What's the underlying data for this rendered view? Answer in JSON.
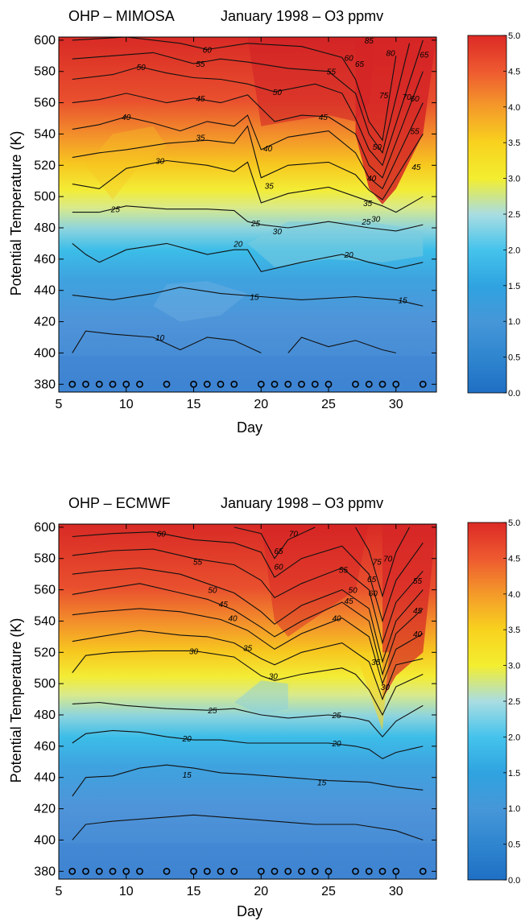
{
  "chart_data": [
    {
      "type": "heatmap",
      "title_left": "OHP – MIMOSA",
      "title_right": "January 1998  – O3 ppmv",
      "xlabel": "Day",
      "ylabel": "Potential Temperature (K)",
      "xlim": [
        5,
        33
      ],
      "ylim": [
        375,
        602
      ],
      "xticks": [
        5,
        10,
        15,
        20,
        25,
        30
      ],
      "yticks": [
        380,
        400,
        420,
        440,
        460,
        480,
        500,
        520,
        540,
        560,
        580,
        600
      ],
      "colorbar_ticks": [
        "0.0",
        "0.5",
        "1.0",
        "1.5",
        "2.0",
        "2.5",
        "3.0",
        "3.5",
        "4.0",
        "4.5",
        "5.0"
      ],
      "colorbar_range": [
        0,
        5
      ],
      "observation_days": [
        6,
        7,
        8,
        9,
        10,
        11,
        13,
        15,
        16,
        17,
        18,
        20,
        21,
        22,
        23,
        24,
        25,
        27,
        28,
        29,
        30,
        32
      ],
      "observation_level": 380,
      "contour_labels": [
        {
          "text": "10",
          "x": 12.5,
          "y": 410
        },
        {
          "text": "15",
          "x": 19.5,
          "y": 436
        },
        {
          "text": "15",
          "x": 30.5,
          "y": 434
        },
        {
          "text": "20",
          "x": 18.3,
          "y": 470
        },
        {
          "text": "20",
          "x": 26.5,
          "y": 463
        },
        {
          "text": "25",
          "x": 9.2,
          "y": 492
        },
        {
          "text": "25",
          "x": 19.6,
          "y": 483
        },
        {
          "text": "25",
          "x": 27.8,
          "y": 484
        },
        {
          "text": "30",
          "x": 12.5,
          "y": 523
        },
        {
          "text": "30",
          "x": 21.2,
          "y": 478
        },
        {
          "text": "30",
          "x": 28.5,
          "y": 486
        },
        {
          "text": "35",
          "x": 15.5,
          "y": 538
        },
        {
          "text": "35",
          "x": 20.6,
          "y": 507
        },
        {
          "text": "35",
          "x": 27.9,
          "y": 496
        },
        {
          "text": "40",
          "x": 10.0,
          "y": 551
        },
        {
          "text": "40",
          "x": 20.5,
          "y": 531
        },
        {
          "text": "40",
          "x": 28.2,
          "y": 512
        },
        {
          "text": "45",
          "x": 15.5,
          "y": 563
        },
        {
          "text": "45",
          "x": 24.6,
          "y": 551
        },
        {
          "text": "45",
          "x": 31.5,
          "y": 519
        },
        {
          "text": "50",
          "x": 11.1,
          "y": 583
        },
        {
          "text": "50",
          "x": 21.2,
          "y": 567
        },
        {
          "text": "50",
          "x": 28.6,
          "y": 532
        },
        {
          "text": "55",
          "x": 15.5,
          "y": 585
        },
        {
          "text": "55",
          "x": 25.2,
          "y": 580
        },
        {
          "text": "55",
          "x": 31.4,
          "y": 542
        },
        {
          "text": "60",
          "x": 16.0,
          "y": 594
        },
        {
          "text": "60",
          "x": 26.5,
          "y": 589
        },
        {
          "text": "60",
          "x": 31.4,
          "y": 563
        },
        {
          "text": "65",
          "x": 27.3,
          "y": 585
        },
        {
          "text": "65",
          "x": 32.1,
          "y": 591
        },
        {
          "text": "70",
          "x": 30.8,
          "y": 564
        },
        {
          "text": "75",
          "x": 29.1,
          "y": 565
        },
        {
          "text": "80",
          "x": 29.6,
          "y": 592
        },
        {
          "text": "85",
          "x": 28.0,
          "y": 600
        }
      ]
    },
    {
      "type": "heatmap",
      "title_left": "OHP – ECMWF",
      "title_right": "January 1998  – O3 ppmv",
      "xlabel": "Day",
      "ylabel": "Potential Temperature (K)",
      "xlim": [
        5,
        33
      ],
      "ylim": [
        375,
        602
      ],
      "xticks": [
        5,
        10,
        15,
        20,
        25,
        30
      ],
      "yticks": [
        380,
        400,
        420,
        440,
        460,
        480,
        500,
        520,
        540,
        560,
        580,
        600
      ],
      "colorbar_ticks": [
        "0.0",
        "0.5",
        "1.0",
        "1.5",
        "2.0",
        "2.5",
        "3.0",
        "3.5",
        "4.0",
        "4.5",
        "5.0"
      ],
      "colorbar_range": [
        0,
        5
      ],
      "observation_days": [
        6,
        7,
        8,
        9,
        10,
        11,
        13,
        15,
        16,
        17,
        18,
        20,
        21,
        22,
        23,
        24,
        25,
        27,
        28,
        29,
        30,
        32
      ],
      "observation_level": 380,
      "contour_labels": [
        {
          "text": "15",
          "x": 14.5,
          "y": 442
        },
        {
          "text": "15",
          "x": 24.5,
          "y": 437
        },
        {
          "text": "20",
          "x": 14.5,
          "y": 465
        },
        {
          "text": "20",
          "x": 25.6,
          "y": 462
        },
        {
          "text": "25",
          "x": 16.4,
          "y": 483
        },
        {
          "text": "25",
          "x": 25.6,
          "y": 480
        },
        {
          "text": "30",
          "x": 15.0,
          "y": 521
        },
        {
          "text": "30",
          "x": 20.9,
          "y": 505
        },
        {
          "text": "30",
          "x": 29.2,
          "y": 498
        },
        {
          "text": "35",
          "x": 19.0,
          "y": 523
        },
        {
          "text": "35",
          "x": 28.5,
          "y": 514
        },
        {
          "text": "40",
          "x": 17.9,
          "y": 542
        },
        {
          "text": "40",
          "x": 25.6,
          "y": 542
        },
        {
          "text": "40",
          "x": 31.6,
          "y": 532
        },
        {
          "text": "45",
          "x": 17.2,
          "y": 551
        },
        {
          "text": "45",
          "x": 26.5,
          "y": 553
        },
        {
          "text": "45",
          "x": 31.6,
          "y": 547
        },
        {
          "text": "50",
          "x": 16.4,
          "y": 560
        },
        {
          "text": "50",
          "x": 26.8,
          "y": 560
        },
        {
          "text": "55",
          "x": 15.3,
          "y": 578
        },
        {
          "text": "55",
          "x": 26.1,
          "y": 573
        },
        {
          "text": "55",
          "x": 31.6,
          "y": 566
        },
        {
          "text": "60",
          "x": 12.6,
          "y": 596
        },
        {
          "text": "60",
          "x": 21.3,
          "y": 575
        },
        {
          "text": "60",
          "x": 28.3,
          "y": 558
        },
        {
          "text": "65",
          "x": 21.3,
          "y": 585
        },
        {
          "text": "65",
          "x": 28.2,
          "y": 567
        },
        {
          "text": "70",
          "x": 22.4,
          "y": 596
        },
        {
          "text": "70",
          "x": 29.4,
          "y": 580
        },
        {
          "text": "75",
          "x": 28.6,
          "y": 578
        }
      ]
    }
  ]
}
